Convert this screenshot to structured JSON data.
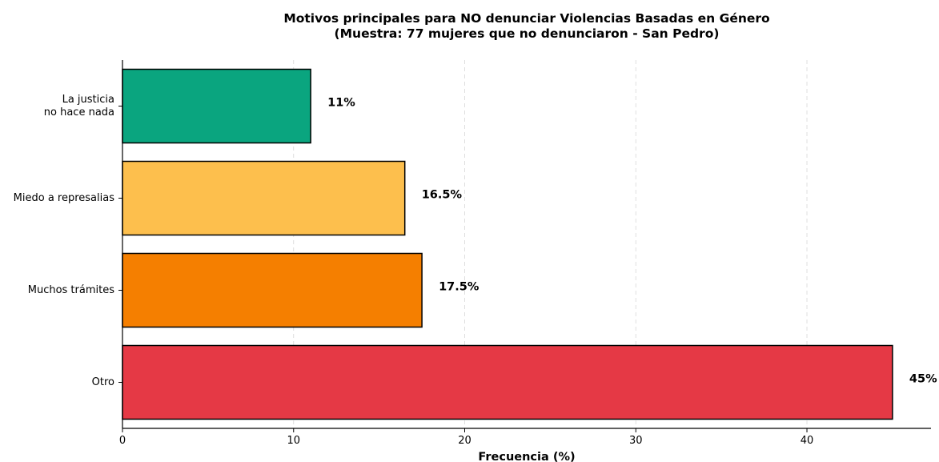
{
  "chart_data": {
    "type": "bar",
    "orientation": "horizontal",
    "title": "Motivos principales para NO denunciar Violencias Basadas en Género",
    "subtitle": "(Muestra: 77 mujeres que no denunciaron - San Pedro)",
    "xlabel": "Frecuencia (%)",
    "ylabel": "",
    "xlim": [
      0,
      47.25
    ],
    "xticks": [
      0,
      10,
      20,
      30,
      40
    ],
    "grid": "x-dashed",
    "categories": [
      [
        "La justicia",
        "no hace nada"
      ],
      [
        "Miedo a represalias"
      ],
      [
        "Muchos trámites"
      ],
      [
        "Otro"
      ]
    ],
    "values": [
      11,
      16.5,
      17.5,
      45
    ],
    "data_labels": [
      "11%",
      "16.5%",
      "17.5%",
      "45%"
    ],
    "colors": [
      "#0aa57f",
      "#fdbf4d",
      "#f57f00",
      "#e53945"
    ],
    "bar_edge_color": "#000000"
  }
}
